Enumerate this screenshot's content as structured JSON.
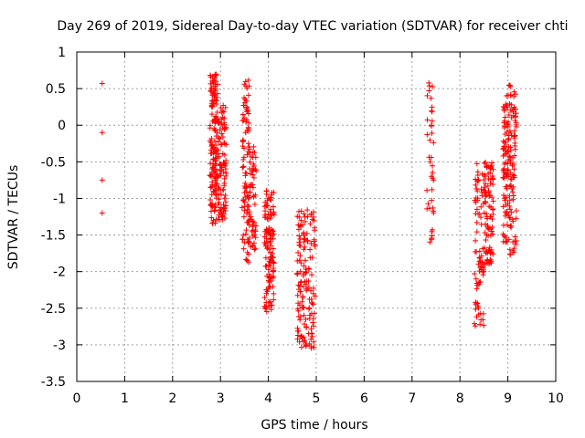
{
  "chart_data": {
    "type": "scatter",
    "title": "Day 269 of 2019, Sidereal Day-to-day VTEC variation (SDTVAR) for receiver chti",
    "xlabel": "GPS time / hours",
    "ylabel": "SDTVAR / TECUs",
    "xlim": [
      0,
      10
    ],
    "ylim": [
      -3.5,
      1
    ],
    "xticks": [
      "0",
      "1",
      "2",
      "3",
      "4",
      "5",
      "6",
      "7",
      "8",
      "9",
      "10"
    ],
    "yticks": [
      "1",
      "0.5",
      "0",
      "-0.5",
      "-1",
      "-1.5",
      "-2",
      "-2.5",
      "-3",
      "-3.5"
    ],
    "grid": true,
    "marker": "+",
    "color": "#ff0000",
    "clusters": [
      {
        "x": [
          0.5,
          0.55
        ],
        "y": [
          -1.2,
          0.6
        ],
        "n": 4,
        "fixed": [
          [
            0.53,
            0.57
          ],
          [
            0.53,
            -0.1
          ],
          [
            0.53,
            -0.75
          ],
          [
            0.53,
            -1.2
          ]
        ]
      },
      {
        "x": [
          2.78,
          2.95
        ],
        "y": [
          -1.35,
          0.7
        ],
        "n": 160
      },
      {
        "x": [
          2.95,
          3.12
        ],
        "y": [
          -1.3,
          0.3
        ],
        "n": 90
      },
      {
        "x": [
          3.45,
          3.6
        ],
        "y": [
          -1.9,
          0.62
        ],
        "n": 90
      },
      {
        "x": [
          3.6,
          3.75
        ],
        "y": [
          -1.7,
          -0.2
        ],
        "n": 60
      },
      {
        "x": [
          3.92,
          4.12
        ],
        "y": [
          -2.55,
          -0.85
        ],
        "n": 120
      },
      {
        "x": [
          4.6,
          4.75
        ],
        "y": [
          -3.05,
          -1.1
        ],
        "n": 70
      },
      {
        "x": [
          4.75,
          4.98
        ],
        "y": [
          -3.05,
          -1.15
        ],
        "n": 80
      },
      {
        "x": [
          7.3,
          7.45
        ],
        "y": [
          -1.6,
          0.8
        ],
        "n": 40
      },
      {
        "x": [
          8.3,
          8.5
        ],
        "y": [
          -2.75,
          -0.45
        ],
        "n": 80
      },
      {
        "x": [
          8.5,
          8.7
        ],
        "y": [
          -1.9,
          -0.5
        ],
        "n": 90
      },
      {
        "x": [
          8.9,
          9.18
        ],
        "y": [
          -1.8,
          0.55
        ],
        "n": 170
      }
    ]
  }
}
